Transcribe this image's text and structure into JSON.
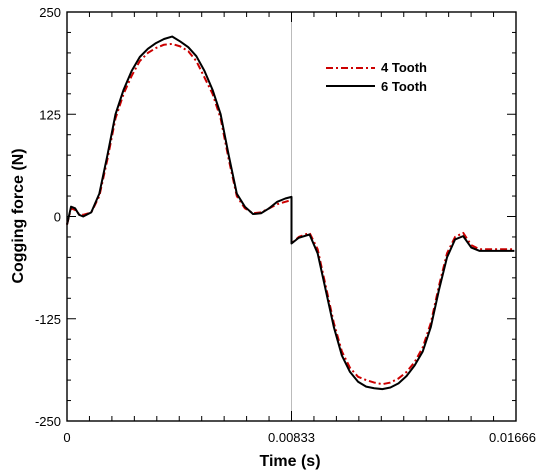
{
  "chart_data": {
    "type": "line",
    "xlabel": "Time (s)",
    "ylabel": "Cogging force (N)",
    "xlim": [
      0,
      0.01666
    ],
    "ylim": [
      -250,
      250
    ],
    "xticks": [
      0,
      0.00833,
      0.01666
    ],
    "xtick_labels": [
      "0",
      "0.00833",
      "0.01666"
    ],
    "yticks": [
      -250,
      -125,
      0,
      125,
      250
    ],
    "ytick_labels": [
      "-250",
      "-125",
      "0",
      "125",
      "250"
    ],
    "center_line_x": 0.00833,
    "grid": false,
    "legend_position": "top-right",
    "series": [
      {
        "name": "4 Tooth",
        "color": "#cc0000",
        "dash": "dashdot",
        "x": [
          0,
          0.00015,
          0.0003,
          0.00045,
          0.0006,
          0.0009,
          0.0012,
          0.0015,
          0.0018,
          0.0021,
          0.0024,
          0.0027,
          0.003,
          0.0033,
          0.0036,
          0.0039,
          0.0042,
          0.0045,
          0.0048,
          0.0051,
          0.0054,
          0.0057,
          0.006,
          0.0063,
          0.0066,
          0.0069,
          0.0072,
          0.0075,
          0.0078,
          0.0081,
          0.00833,
          0.00833,
          0.0086,
          0.009,
          0.0093,
          0.0096,
          0.0099,
          0.0102,
          0.0105,
          0.0108,
          0.0111,
          0.0114,
          0.0117,
          0.012,
          0.0123,
          0.0126,
          0.0129,
          0.0132,
          0.0135,
          0.0138,
          0.0141,
          0.0144,
          0.0147,
          0.015,
          0.0153,
          0.0156,
          0.0159,
          0.0162,
          0.0166
        ],
        "y": [
          -10,
          10,
          8,
          3,
          2,
          5,
          25,
          70,
          120,
          150,
          172,
          190,
          200,
          206,
          210,
          211,
          208,
          202,
          190,
          170,
          150,
          120,
          70,
          25,
          10,
          4,
          5,
          10,
          15,
          18,
          20,
          -33,
          -25,
          -20,
          -40,
          -85,
          -130,
          -165,
          -185,
          -196,
          -200,
          -203,
          -205,
          -203,
          -198,
          -190,
          -178,
          -160,
          -130,
          -85,
          -45,
          -25,
          -20,
          -35,
          -40,
          -40,
          -40,
          -40,
          -40
        ],
        "note": "x sampled across 0–0.01666 s"
      },
      {
        "name": "6 Tooth",
        "color": "#000000",
        "dash": "solid",
        "x": [
          0,
          0.00015,
          0.0003,
          0.00045,
          0.0006,
          0.0009,
          0.0012,
          0.0015,
          0.0018,
          0.0021,
          0.0024,
          0.0027,
          0.003,
          0.0033,
          0.0036,
          0.0039,
          0.0042,
          0.0045,
          0.0048,
          0.0051,
          0.0054,
          0.0057,
          0.006,
          0.0063,
          0.0066,
          0.0069,
          0.0072,
          0.0075,
          0.0078,
          0.0081,
          0.00833,
          0.00833,
          0.0086,
          0.009,
          0.0093,
          0.0096,
          0.0099,
          0.0102,
          0.0105,
          0.0108,
          0.0111,
          0.0114,
          0.0117,
          0.012,
          0.0123,
          0.0126,
          0.0129,
          0.0132,
          0.0135,
          0.0138,
          0.0141,
          0.0144,
          0.0147,
          0.015,
          0.0153,
          0.0156,
          0.0159,
          0.0162,
          0.0166
        ],
        "y": [
          -10,
          12,
          10,
          2,
          0,
          5,
          28,
          75,
          125,
          155,
          178,
          195,
          205,
          212,
          217,
          220,
          214,
          207,
          196,
          178,
          155,
          125,
          75,
          28,
          12,
          3,
          4,
          10,
          18,
          22,
          24,
          -33,
          -26,
          -22,
          -45,
          -90,
          -135,
          -170,
          -190,
          -202,
          -208,
          -210,
          -211,
          -209,
          -204,
          -195,
          -182,
          -165,
          -135,
          -90,
          -50,
          -28,
          -24,
          -38,
          -42,
          -42,
          -42,
          -42,
          -42
        ]
      }
    ]
  }
}
